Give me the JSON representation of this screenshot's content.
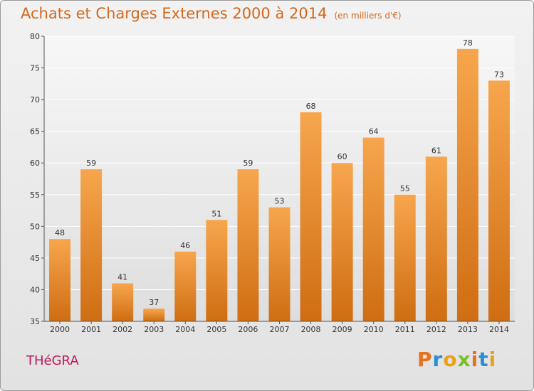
{
  "title": "Achats et Charges Externes 2000 à 2014",
  "subtitle": "(en milliers d'€)",
  "commune": "THéGRA",
  "logo": {
    "letters": [
      "P",
      "r",
      "o",
      "x",
      "i",
      "t",
      "i"
    ],
    "colors": [
      "#e8711b",
      "#2a8fd6",
      "#e8a21b",
      "#7bbf2a",
      "#e8711b",
      "#2a8fd6",
      "#e8a21b"
    ]
  },
  "chart_data": {
    "type": "bar",
    "title": "Achats et Charges Externes 2000 à 2014",
    "xlabel": "",
    "ylabel": "",
    "categories": [
      "2000",
      "2001",
      "2002",
      "2003",
      "2004",
      "2005",
      "2006",
      "2007",
      "2008",
      "2009",
      "2010",
      "2011",
      "2012",
      "2013",
      "2014"
    ],
    "values": [
      48,
      59,
      41,
      37,
      46,
      51,
      59,
      53,
      68,
      60,
      64,
      55,
      61,
      78,
      73
    ],
    "ylim": [
      35,
      80
    ],
    "yticks": [
      35,
      40,
      45,
      50,
      55,
      60,
      65,
      70,
      75,
      80
    ],
    "grid": true,
    "bar_color_top": "#f7a64d",
    "bar_color_bottom": "#cf6d12"
  }
}
